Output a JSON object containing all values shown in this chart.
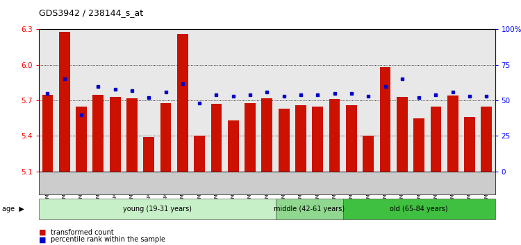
{
  "title": "GDS3942 / 238144_s_at",
  "samples": [
    "GSM812988",
    "GSM812989",
    "GSM812990",
    "GSM812991",
    "GSM812992",
    "GSM812993",
    "GSM812994",
    "GSM812995",
    "GSM812996",
    "GSM812997",
    "GSM812998",
    "GSM812999",
    "GSM813000",
    "GSM813001",
    "GSM813002",
    "GSM813003",
    "GSM813004",
    "GSM813005",
    "GSM813006",
    "GSM813007",
    "GSM813008",
    "GSM813009",
    "GSM813010",
    "GSM813011",
    "GSM813012",
    "GSM813013",
    "GSM813014"
  ],
  "transformed_count": [
    5.75,
    6.28,
    5.65,
    5.75,
    5.73,
    5.72,
    5.39,
    5.68,
    6.26,
    5.4,
    5.67,
    5.53,
    5.68,
    5.72,
    5.63,
    5.66,
    5.65,
    5.71,
    5.66,
    5.4,
    5.98,
    5.73,
    5.55,
    5.65,
    5.74,
    5.56,
    5.65
  ],
  "percentile_rank": [
    55,
    65,
    40,
    60,
    58,
    57,
    52,
    56,
    62,
    48,
    54,
    53,
    54,
    56,
    53,
    54,
    54,
    55,
    55,
    53,
    60,
    65,
    52,
    54,
    56,
    53,
    53
  ],
  "age_groups": [
    {
      "label": "young (19-31 years)",
      "start": 0,
      "end": 14,
      "color": "#c8f0c8"
    },
    {
      "label": "middle (42-61 years)",
      "start": 14,
      "end": 18,
      "color": "#90d890"
    },
    {
      "label": "old (65-84 years)",
      "start": 18,
      "end": 27,
      "color": "#40c040"
    }
  ],
  "bar_color": "#cc1100",
  "dot_color": "#0000cc",
  "ylim_left": [
    5.1,
    6.3
  ],
  "ylim_right": [
    0,
    100
  ],
  "yticks_left": [
    5.1,
    5.4,
    5.7,
    6.0,
    6.3
  ],
  "yticks_right": [
    0,
    25,
    50,
    75,
    100
  ],
  "ytick_labels_right": [
    "0",
    "25",
    "50",
    "75",
    "100%"
  ],
  "plot_bg_color": "#e8e8e8",
  "legend_items": [
    "transformed count",
    "percentile rank within the sample"
  ]
}
